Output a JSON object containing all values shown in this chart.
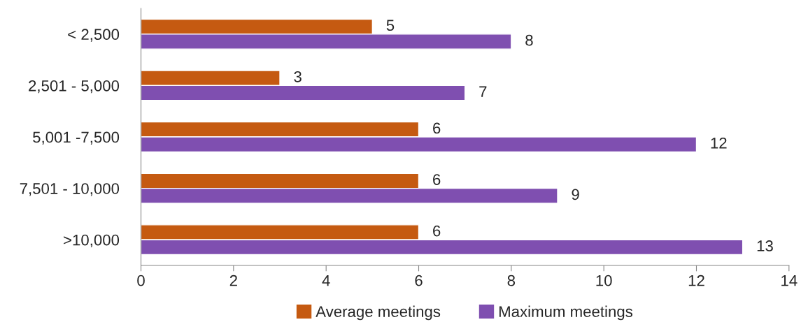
{
  "chart_data": {
    "type": "bar",
    "orientation": "horizontal",
    "categories": [
      "< 2,500",
      "2,501 - 5,000",
      "5,001 -7,500",
      "7,501 - 10,000",
      ">10,000"
    ],
    "series": [
      {
        "name": "Average meetings",
        "color": "#c55a11",
        "values": [
          5,
          3,
          6,
          6,
          6
        ]
      },
      {
        "name": "Maximum meetings",
        "color": "#7f4fb0",
        "values": [
          8,
          7,
          12,
          9,
          13
        ]
      }
    ],
    "xlim": [
      0,
      14
    ],
    "xticks": [
      0,
      2,
      4,
      6,
      8,
      10,
      12,
      14
    ],
    "data_labels": true,
    "grid": false,
    "legend": "bottom"
  }
}
